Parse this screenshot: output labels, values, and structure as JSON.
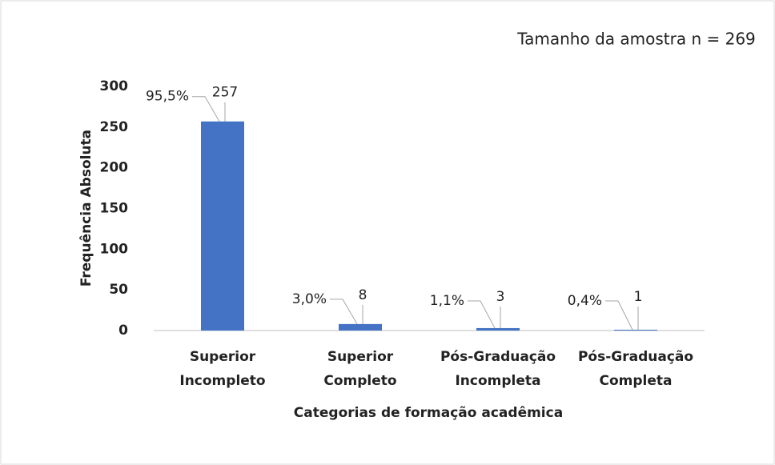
{
  "chart_data": {
    "type": "bar",
    "annotation": "Tamanho da amostra n = 269",
    "y_label": "Frequência Absoluta",
    "x_label": "Categorias de formação acadêmica",
    "categories": [
      [
        "Superior",
        "Incompleto"
      ],
      [
        "Superior",
        "Completo"
      ],
      [
        "Pós-Graduação",
        "Incompleta"
      ],
      [
        "Pós-Graduação",
        "Completa"
      ]
    ],
    "values": [
      257,
      8,
      3,
      1
    ],
    "percentages": [
      95.5,
      3.0,
      1.1,
      0.4
    ],
    "percentage_labels": [
      "95,5%",
      "3,0%",
      "1,1%",
      "0,4%"
    ],
    "color": "#4472c4",
    "ylim": [
      0,
      300
    ],
    "yticks": [
      0,
      50,
      100,
      150,
      200,
      250,
      300
    ],
    "grid": false
  }
}
